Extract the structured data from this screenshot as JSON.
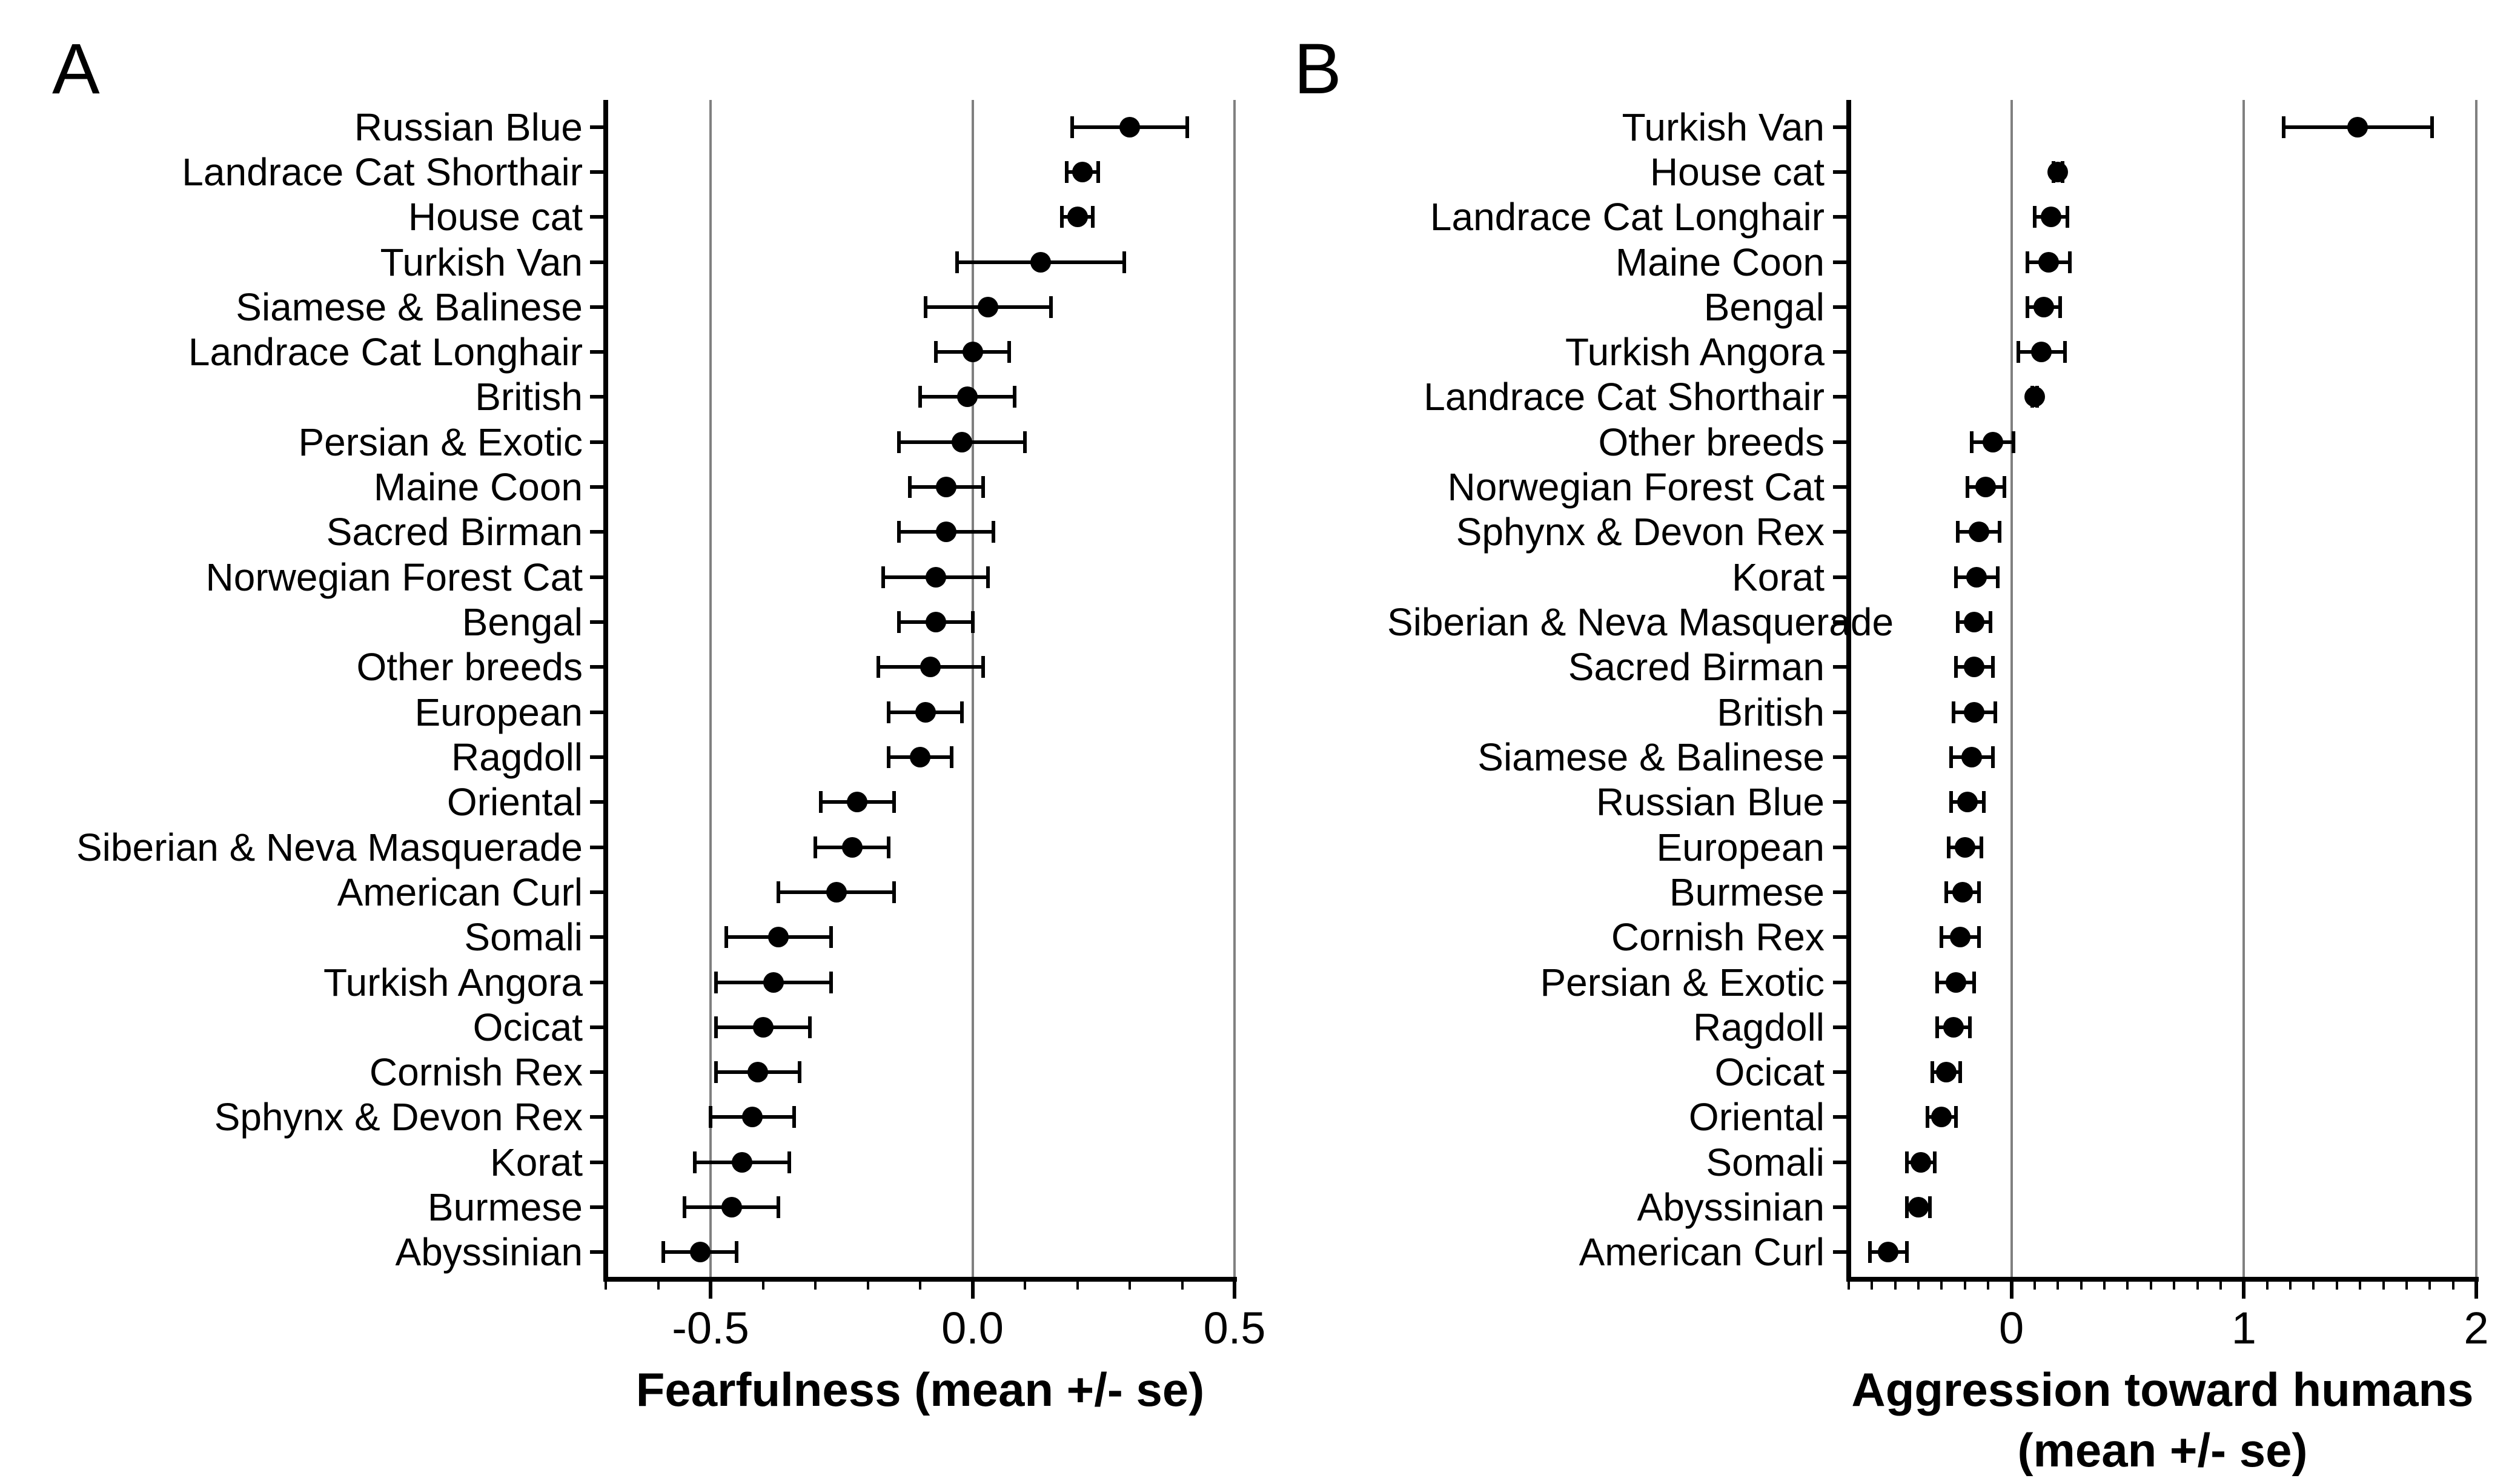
{
  "figure": {
    "background": "#ffffff",
    "text_color": "#000000",
    "gridline_color": "#808080",
    "point_color": "#000000"
  },
  "chart_data": [
    {
      "type": "scatter",
      "subtype": "horizontal_dot_plot_with_error_bars",
      "panel_label": "A",
      "xlabel_lines": [
        "Fearfulness (mean +/- se)"
      ],
      "xlim": [
        -0.7,
        0.5
      ],
      "major_ticks": [
        -0.5,
        0.0,
        0.5
      ],
      "major_tick_labels": [
        "-0.5",
        "0.0",
        "0.5"
      ],
      "minor_tick_step": 0.1,
      "grid_vertical_at_major_ticks": true,
      "legend": "none",
      "categories": [
        "Russian Blue",
        "Landrace Cat Shorthair",
        "House cat",
        "Turkish Van",
        "Siamese & Balinese",
        "Landrace Cat Longhair",
        "British",
        "Persian & Exotic",
        "Maine Coon",
        "Sacred Birman",
        "Norwegian Forest Cat",
        "Bengal",
        "Other breeds",
        "European",
        "Ragdoll",
        "Oriental",
        "Siberian & Neva Masquerade",
        "American Curl",
        "Somali",
        "Turkish Angora",
        "Ocicat",
        "Cornish Rex",
        "Sphynx & Devon Rex",
        "Korat",
        "Burmese",
        "Abyssinian"
      ],
      "series": [
        {
          "name": "mean",
          "values": [
            0.3,
            0.21,
            0.2,
            0.13,
            0.03,
            0.0,
            -0.01,
            -0.02,
            -0.05,
            -0.05,
            -0.07,
            -0.07,
            -0.08,
            -0.09,
            -0.1,
            -0.22,
            -0.23,
            -0.26,
            -0.37,
            -0.38,
            -0.4,
            -0.41,
            -0.42,
            -0.44,
            -0.46,
            -0.52
          ]
        },
        {
          "name": "se",
          "values": [
            0.11,
            0.03,
            0.03,
            0.16,
            0.12,
            0.07,
            0.09,
            0.12,
            0.07,
            0.09,
            0.1,
            0.07,
            0.1,
            0.07,
            0.06,
            0.07,
            0.07,
            0.11,
            0.1,
            0.11,
            0.09,
            0.08,
            0.08,
            0.09,
            0.09,
            0.07
          ]
        }
      ]
    },
    {
      "type": "scatter",
      "subtype": "horizontal_dot_plot_with_error_bars",
      "panel_label": "B",
      "xlabel_lines": [
        "Aggression toward humans",
        "(mean +/- se)"
      ],
      "xlim": [
        -0.7,
        2.0
      ],
      "major_ticks": [
        0,
        1,
        2
      ],
      "major_tick_labels": [
        "0",
        "1",
        "2"
      ],
      "minor_tick_step": 0.1,
      "grid_vertical_at_major_ticks": true,
      "legend": "none",
      "categories": [
        "Turkish Van",
        "House cat",
        "Landrace Cat Longhair",
        "Maine Coon",
        "Bengal",
        "Turkish Angora",
        "Landrace Cat Shorthair",
        "Other breeds",
        "Norwegian Forest Cat",
        "Sphynx & Devon Rex",
        "Korat",
        "Siberian & Neva Masquerade",
        "Sacred Birman",
        "British",
        "Siamese & Balinese",
        "Russian Blue",
        "European",
        "Burmese",
        "Cornish Rex",
        "Persian & Exotic",
        "Ragdoll",
        "Ocicat",
        "Oriental",
        "Somali",
        "Abyssinian",
        "American Curl"
      ],
      "series": [
        {
          "name": "mean",
          "values": [
            1.49,
            0.2,
            0.17,
            0.16,
            0.14,
            0.13,
            0.1,
            -0.08,
            -0.11,
            -0.14,
            -0.15,
            -0.16,
            -0.16,
            -0.16,
            -0.17,
            -0.19,
            -0.2,
            -0.21,
            -0.22,
            -0.24,
            -0.25,
            -0.28,
            -0.3,
            -0.39,
            -0.4,
            -0.53
          ]
        },
        {
          "name": "se",
          "values": [
            0.32,
            0.02,
            0.07,
            0.09,
            0.07,
            0.1,
            0.01,
            0.09,
            0.08,
            0.09,
            0.09,
            0.07,
            0.08,
            0.09,
            0.09,
            0.07,
            0.07,
            0.07,
            0.08,
            0.08,
            0.07,
            0.06,
            0.06,
            0.06,
            0.05,
            0.08
          ]
        }
      ]
    }
  ]
}
